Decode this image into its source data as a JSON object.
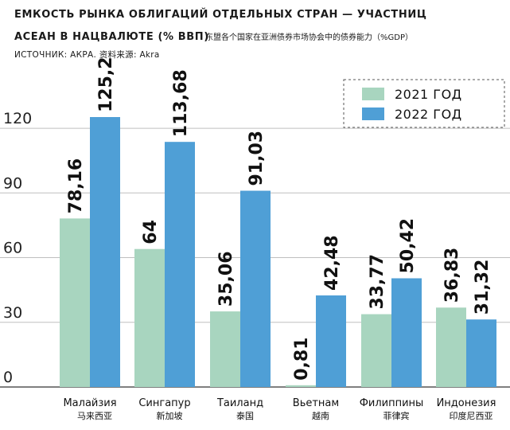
{
  "chart_data": {
    "type": "bar",
    "title_line1": "ЕМКОСТЬ РЫНКА ОБЛИГАЦИЙ ОТДЕЛЬНЫХ СТРАН — УЧАСТНИЦ",
    "title_line2": "АСЕАН В НАЦВАЛЮТЕ (% ВВП)",
    "subtitle_cn": "东盟各个国家在亚洲债券市场协会中的债券能力（%GDP）",
    "source": "ИСТОЧНИК: АКРА.  资料来源: Akra",
    "categories": [
      {
        "ru": "Малайзия",
        "cn": "马来西亚"
      },
      {
        "ru": "Сингапур",
        "cn": "新加坡"
      },
      {
        "ru": "Таиланд",
        "cn": "泰国"
      },
      {
        "ru": "Вьетнам",
        "cn": "越南"
      },
      {
        "ru": "Филиппины",
        "cn": "菲律宾"
      },
      {
        "ru": "Индонезия",
        "cn": "印度尼西亚"
      }
    ],
    "series": [
      {
        "name": "2021 ГОД",
        "color": "#a8d5bf",
        "values": [
          78.16,
          64,
          35.06,
          0.81,
          33.77,
          36.83
        ],
        "labels": [
          "78,16",
          "64",
          "35,06",
          "0,81",
          "33,77",
          "36,83"
        ]
      },
      {
        "name": "2022 ГОД",
        "color": "#4f9fd6",
        "values": [
          125.2,
          113.68,
          91.03,
          42.48,
          50.42,
          31.32
        ],
        "labels": [
          "125,2",
          "113,68",
          "91,03",
          "42,48",
          "50,42",
          "31,32"
        ]
      }
    ],
    "y_ticks": [
      0,
      30,
      60,
      90,
      120
    ],
    "y_tick_labels": [
      "0",
      "30",
      "60",
      "90",
      "120"
    ],
    "ylim": [
      0,
      120
    ],
    "legend_position": "top-right",
    "grid": "horizontal"
  }
}
